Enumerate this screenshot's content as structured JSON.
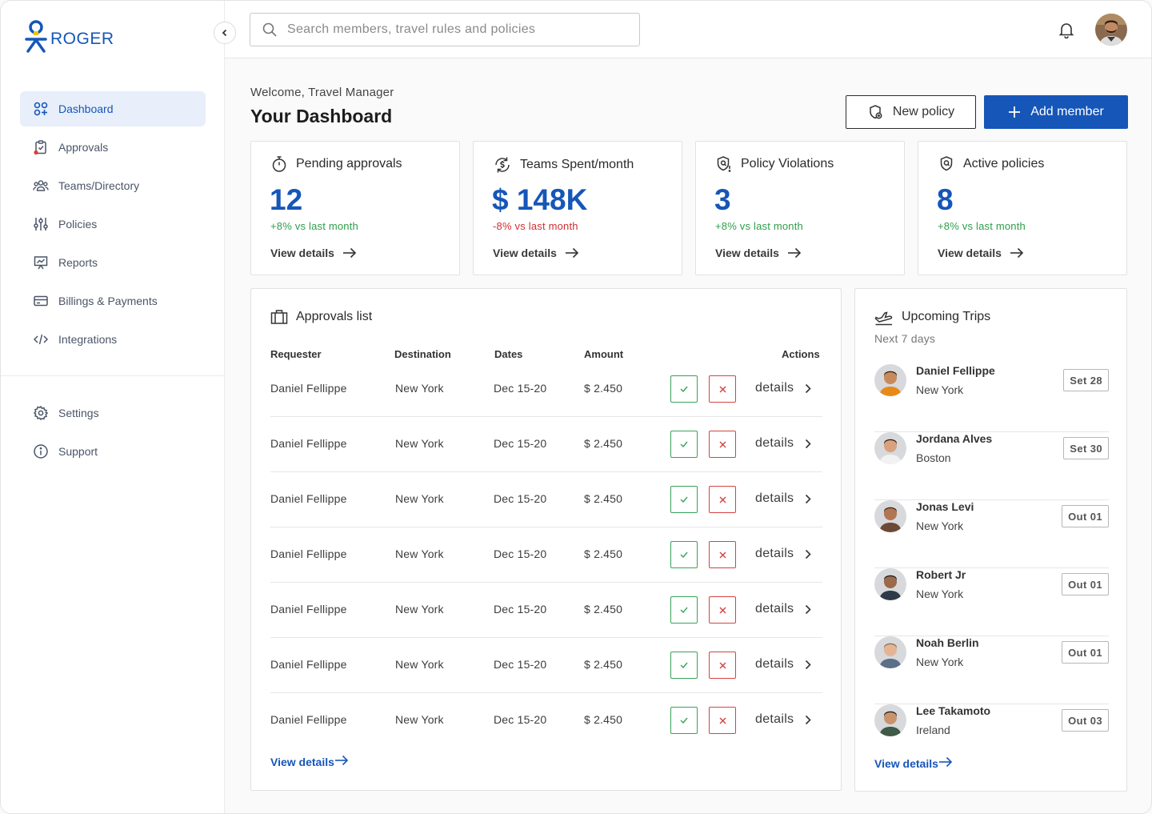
{
  "brand": {
    "name": "ROGER",
    "color": "#1656b8"
  },
  "sidebar": {
    "items": [
      {
        "label": "Dashboard",
        "icon": "dashboard-grid-icon",
        "active": true
      },
      {
        "label": "Approvals",
        "icon": "clipboard-check-icon",
        "badge_dot": "#e53935"
      },
      {
        "label": "Teams/Directory",
        "icon": "team-icon"
      },
      {
        "label": "Policies",
        "icon": "sliders-icon"
      },
      {
        "label": "Reports",
        "icon": "presentation-chart-icon"
      },
      {
        "label": "Billings & Payments",
        "icon": "credit-card-icon"
      },
      {
        "label": "Integrations",
        "icon": "code-icon"
      }
    ],
    "secondary": [
      {
        "label": "Settings",
        "icon": "gear-icon"
      },
      {
        "label": "Support",
        "icon": "info-icon"
      }
    ]
  },
  "topbar": {
    "search_placeholder": "Search members, travel rules and policies"
  },
  "header": {
    "welcome": "Welcome, Travel Manager",
    "title": "Your Dashboard",
    "new_policy_label": "New policy",
    "add_member_label": "Add member"
  },
  "stats": [
    {
      "label": "Pending approvals",
      "value": "12",
      "delta": "+8% vs last month",
      "trend": "up",
      "link": "View details",
      "icon": "timer-icon"
    },
    {
      "label": "Teams Spent/month",
      "value": "$ 148K",
      "delta": "-8% vs last month",
      "trend": "down",
      "link": "View details",
      "icon": "dollar-cycle-icon"
    },
    {
      "label": "Policy Violations",
      "value": "3",
      "delta": "+8% vs last month",
      "trend": "up",
      "link": "View details",
      "icon": "shield-alert-icon"
    },
    {
      "label": "Active policies",
      "value": "8",
      "delta": "+8% vs last month",
      "trend": "up",
      "link": "View details",
      "icon": "shield-check-icon"
    }
  ],
  "approvals": {
    "title": "Approvals list",
    "columns": {
      "requester": "Requester",
      "destination": "Destination",
      "dates": "Dates",
      "amount": "Amount",
      "actions": "Actions"
    },
    "details_label": "details",
    "rows": [
      {
        "requester": "Daniel Fellippe",
        "destination": "New York",
        "dates": "Dec 15-20",
        "amount": "$ 2.450"
      },
      {
        "requester": "Daniel Fellippe",
        "destination": "New York",
        "dates": "Dec 15-20",
        "amount": "$ 2.450"
      },
      {
        "requester": "Daniel Fellippe",
        "destination": "New York",
        "dates": "Dec 15-20",
        "amount": "$ 2.450"
      },
      {
        "requester": "Daniel Fellippe",
        "destination": "New York",
        "dates": "Dec 15-20",
        "amount": "$ 2.450"
      },
      {
        "requester": "Daniel Fellippe",
        "destination": "New York",
        "dates": "Dec 15-20",
        "amount": "$ 2.450"
      },
      {
        "requester": "Daniel Fellippe",
        "destination": "New York",
        "dates": "Dec 15-20",
        "amount": "$ 2.450"
      },
      {
        "requester": "Daniel Fellippe",
        "destination": "New York",
        "dates": "Dec 15-20",
        "amount": "$ 2.450"
      }
    ],
    "footer_link": "View details"
  },
  "trips": {
    "title": "Upcoming Trips",
    "subtitle": "Next 7 days",
    "items": [
      {
        "name": "Daniel Fellippe",
        "city": "New York",
        "date": "Set 28",
        "skin": "#c98a5b",
        "hair": "#2b1d14",
        "shirt": "#e88a1a"
      },
      {
        "name": "Jordana Alves",
        "city": "Boston",
        "date": "Set 30",
        "skin": "#d9a27e",
        "hair": "#2a1a12",
        "shirt": "#f2f2f2"
      },
      {
        "name": "Jonas Levi",
        "city": "New York",
        "date": "Out 01",
        "skin": "#b27552",
        "hair": "#3a2416",
        "shirt": "#6b4a36"
      },
      {
        "name": "Robert Jr",
        "city": "New York",
        "date": "Out 01",
        "skin": "#9b6a4a",
        "hair": "#1a1a1a",
        "shirt": "#2f3a48"
      },
      {
        "name": "Noah Berlin",
        "city": "New York",
        "date": "Out 01",
        "skin": "#e2b596",
        "hair": "#8b6a4a",
        "shirt": "#5b7088"
      },
      {
        "name": "Lee Takamoto",
        "city": "Ireland",
        "date": "Out 03",
        "skin": "#c9946b",
        "hair": "#1b1b1b",
        "shirt": "#3f5a46"
      }
    ],
    "footer_link": "View details"
  },
  "colors": {
    "primary": "#1656b8",
    "positive": "#2e9d4a",
    "negative": "#d02f2f"
  }
}
